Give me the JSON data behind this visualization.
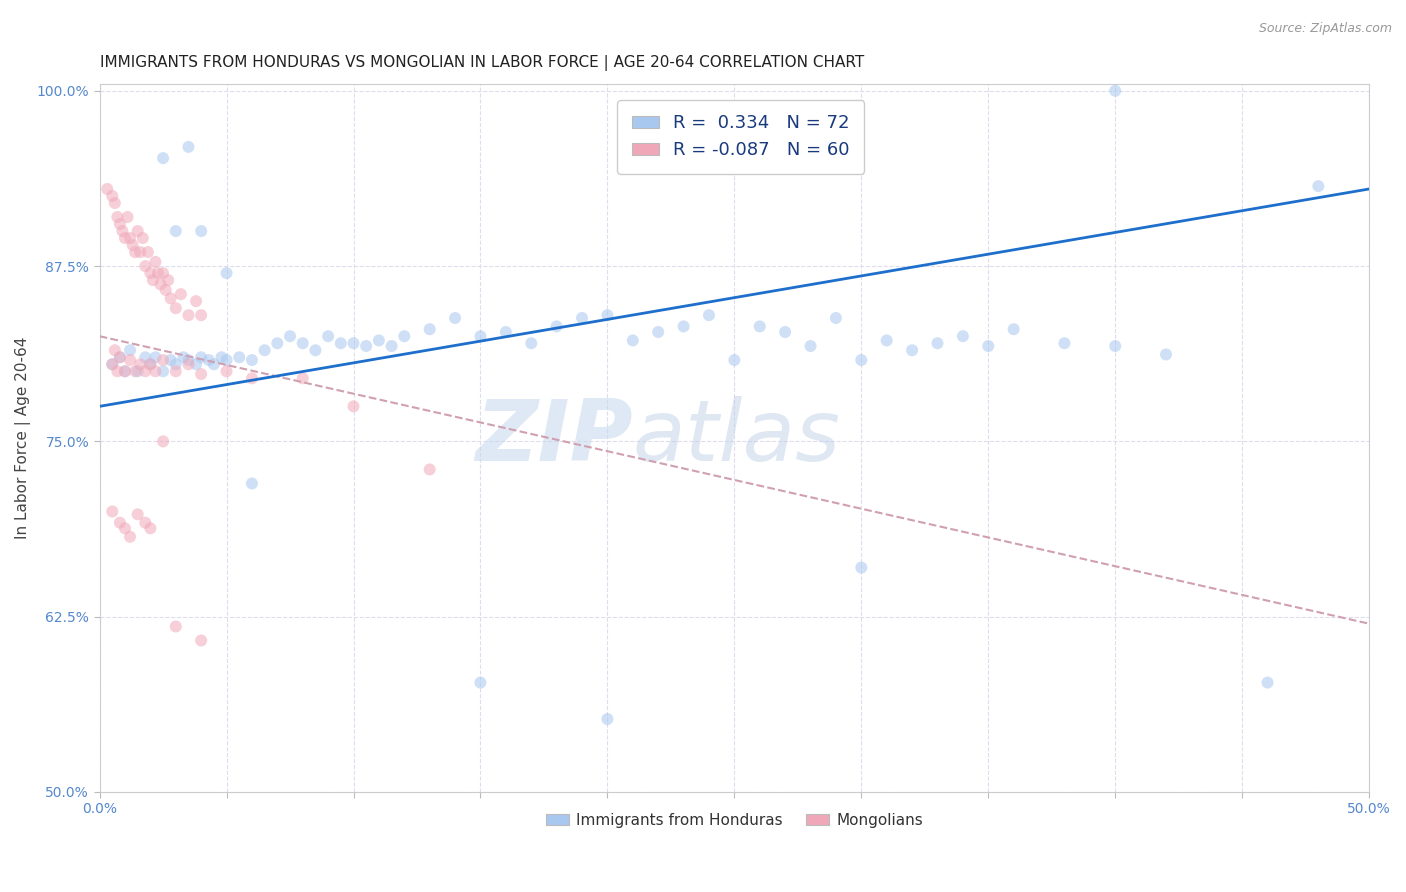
{
  "title": "IMMIGRANTS FROM HONDURAS VS MONGOLIAN IN LABOR FORCE | AGE 20-64 CORRELATION CHART",
  "source": "Source: ZipAtlas.com",
  "ylabel": "In Labor Force | Age 20-64",
  "xlim": [
    0.0,
    0.5
  ],
  "ylim": [
    0.5,
    1.005
  ],
  "xticks": [
    0.0,
    0.05,
    0.1,
    0.15,
    0.2,
    0.25,
    0.3,
    0.35,
    0.4,
    0.45,
    0.5
  ],
  "xticklabels_show": {
    "0.0": "0.0%",
    "0.5": "50.0%"
  },
  "ytick_positions": [
    0.5,
    0.625,
    0.75,
    0.875,
    1.0
  ],
  "yticklabels": [
    "50.0%",
    "62.5%",
    "75.0%",
    "87.5%",
    "100.0%"
  ],
  "blue_color": "#a8c8f0",
  "pink_color": "#f0a8b8",
  "blue_line_color": "#1e6fcc",
  "pink_line_color": "#d0a0b0",
  "legend_R_blue": "0.334",
  "legend_N_blue": "72",
  "legend_R_pink": "-0.087",
  "legend_N_pink": "60",
  "watermark_zip": "ZIP",
  "watermark_atlas": "atlas",
  "blue_scatter_x": [
    0.005,
    0.008,
    0.01,
    0.012,
    0.015,
    0.018,
    0.02,
    0.022,
    0.025,
    0.028,
    0.03,
    0.033,
    0.035,
    0.038,
    0.04,
    0.043,
    0.045,
    0.048,
    0.05,
    0.055,
    0.06,
    0.065,
    0.07,
    0.075,
    0.08,
    0.085,
    0.09,
    0.095,
    0.1,
    0.105,
    0.11,
    0.115,
    0.12,
    0.13,
    0.14,
    0.15,
    0.16,
    0.17,
    0.18,
    0.19,
    0.2,
    0.21,
    0.22,
    0.23,
    0.24,
    0.25,
    0.26,
    0.27,
    0.28,
    0.29,
    0.3,
    0.31,
    0.32,
    0.33,
    0.34,
    0.35,
    0.36,
    0.38,
    0.4,
    0.42,
    0.025,
    0.03,
    0.035,
    0.04,
    0.05,
    0.06,
    0.15,
    0.2,
    0.3,
    0.4,
    0.46,
    0.48
  ],
  "blue_scatter_y": [
    0.805,
    0.81,
    0.8,
    0.815,
    0.8,
    0.81,
    0.805,
    0.81,
    0.8,
    0.808,
    0.805,
    0.81,
    0.808,
    0.805,
    0.81,
    0.808,
    0.805,
    0.81,
    0.808,
    0.81,
    0.808,
    0.815,
    0.82,
    0.825,
    0.82,
    0.815,
    0.825,
    0.82,
    0.82,
    0.818,
    0.822,
    0.818,
    0.825,
    0.83,
    0.838,
    0.825,
    0.828,
    0.82,
    0.832,
    0.838,
    0.84,
    0.822,
    0.828,
    0.832,
    0.84,
    0.808,
    0.832,
    0.828,
    0.818,
    0.838,
    0.808,
    0.822,
    0.815,
    0.82,
    0.825,
    0.818,
    0.83,
    0.82,
    0.818,
    0.812,
    0.952,
    0.9,
    0.96,
    0.9,
    0.87,
    0.72,
    0.578,
    0.552,
    0.66,
    1.0,
    0.578,
    0.932
  ],
  "pink_scatter_x": [
    0.003,
    0.005,
    0.006,
    0.007,
    0.008,
    0.009,
    0.01,
    0.011,
    0.012,
    0.013,
    0.014,
    0.015,
    0.016,
    0.017,
    0.018,
    0.019,
    0.02,
    0.021,
    0.022,
    0.023,
    0.024,
    0.025,
    0.026,
    0.027,
    0.028,
    0.03,
    0.032,
    0.035,
    0.038,
    0.04,
    0.005,
    0.006,
    0.007,
    0.008,
    0.01,
    0.012,
    0.014,
    0.016,
    0.018,
    0.02,
    0.022,
    0.025,
    0.03,
    0.035,
    0.04,
    0.05,
    0.06,
    0.08,
    0.1,
    0.13,
    0.005,
    0.008,
    0.01,
    0.012,
    0.015,
    0.018,
    0.02,
    0.025,
    0.03,
    0.04
  ],
  "pink_scatter_y": [
    0.93,
    0.925,
    0.92,
    0.91,
    0.905,
    0.9,
    0.895,
    0.91,
    0.895,
    0.89,
    0.885,
    0.9,
    0.885,
    0.895,
    0.875,
    0.885,
    0.87,
    0.865,
    0.878,
    0.87,
    0.862,
    0.87,
    0.858,
    0.865,
    0.852,
    0.845,
    0.855,
    0.84,
    0.85,
    0.84,
    0.805,
    0.815,
    0.8,
    0.81,
    0.8,
    0.808,
    0.8,
    0.805,
    0.8,
    0.805,
    0.8,
    0.808,
    0.8,
    0.805,
    0.798,
    0.8,
    0.795,
    0.795,
    0.775,
    0.73,
    0.7,
    0.692,
    0.688,
    0.682,
    0.698,
    0.692,
    0.688,
    0.75,
    0.618,
    0.608
  ],
  "grid_color": "#ddddee",
  "background_color": "#ffffff",
  "title_fontsize": 11,
  "axis_label_fontsize": 11,
  "tick_fontsize": 10,
  "marker_size": 75,
  "marker_alpha": 0.55
}
